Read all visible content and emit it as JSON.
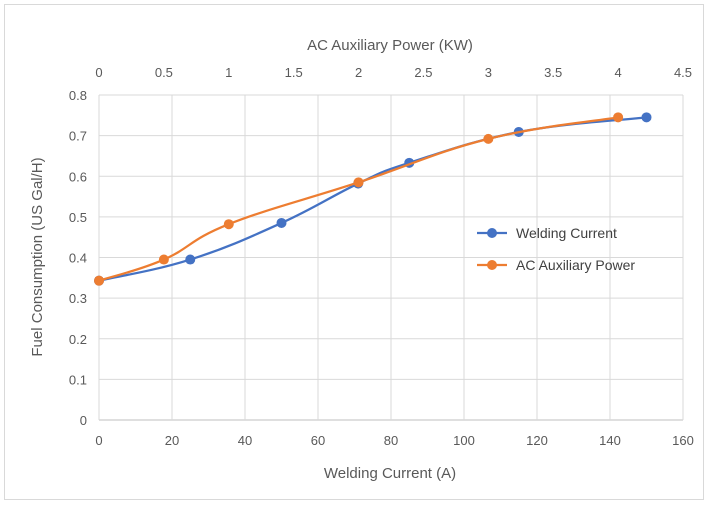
{
  "chart_data": {
    "type": "line",
    "title": "",
    "xlabel": "Welding Current (A)",
    "ylabel": "Fuel Consumption (US Gal/H)",
    "x2label": "AC Auxiliary Power (KW)",
    "xlim": [
      0,
      160
    ],
    "x2lim": [
      0,
      4.5
    ],
    "ylim": [
      0,
      0.8
    ],
    "xticks": [
      "0",
      "20",
      "40",
      "60",
      "80",
      "100",
      "120",
      "140",
      "160"
    ],
    "x2ticks": [
      "0",
      "0.5",
      "1",
      "1.5",
      "2",
      "2.5",
      "3",
      "3.5",
      "4",
      "4.5"
    ],
    "yticks": [
      "0",
      "0.1",
      "0.2",
      "0.3",
      "0.4",
      "0.5",
      "0.6",
      "0.7",
      "0.8"
    ],
    "grid": true,
    "legend_position": "right",
    "series": [
      {
        "name": "Welding Current",
        "axis": "bottom",
        "color": "#4472c4",
        "x": [
          0,
          25,
          50,
          71,
          85,
          115,
          150
        ],
        "y": [
          0.343,
          0.395,
          0.485,
          0.582,
          0.633,
          0.709,
          0.745
        ]
      },
      {
        "name": "AC Auxiliary Power",
        "axis": "top",
        "color": "#ed7d31",
        "x": [
          0,
          0.5,
          1.0,
          2.0,
          3.0,
          4.0
        ],
        "y": [
          0.343,
          0.395,
          0.482,
          0.585,
          0.692,
          0.745
        ]
      }
    ]
  }
}
